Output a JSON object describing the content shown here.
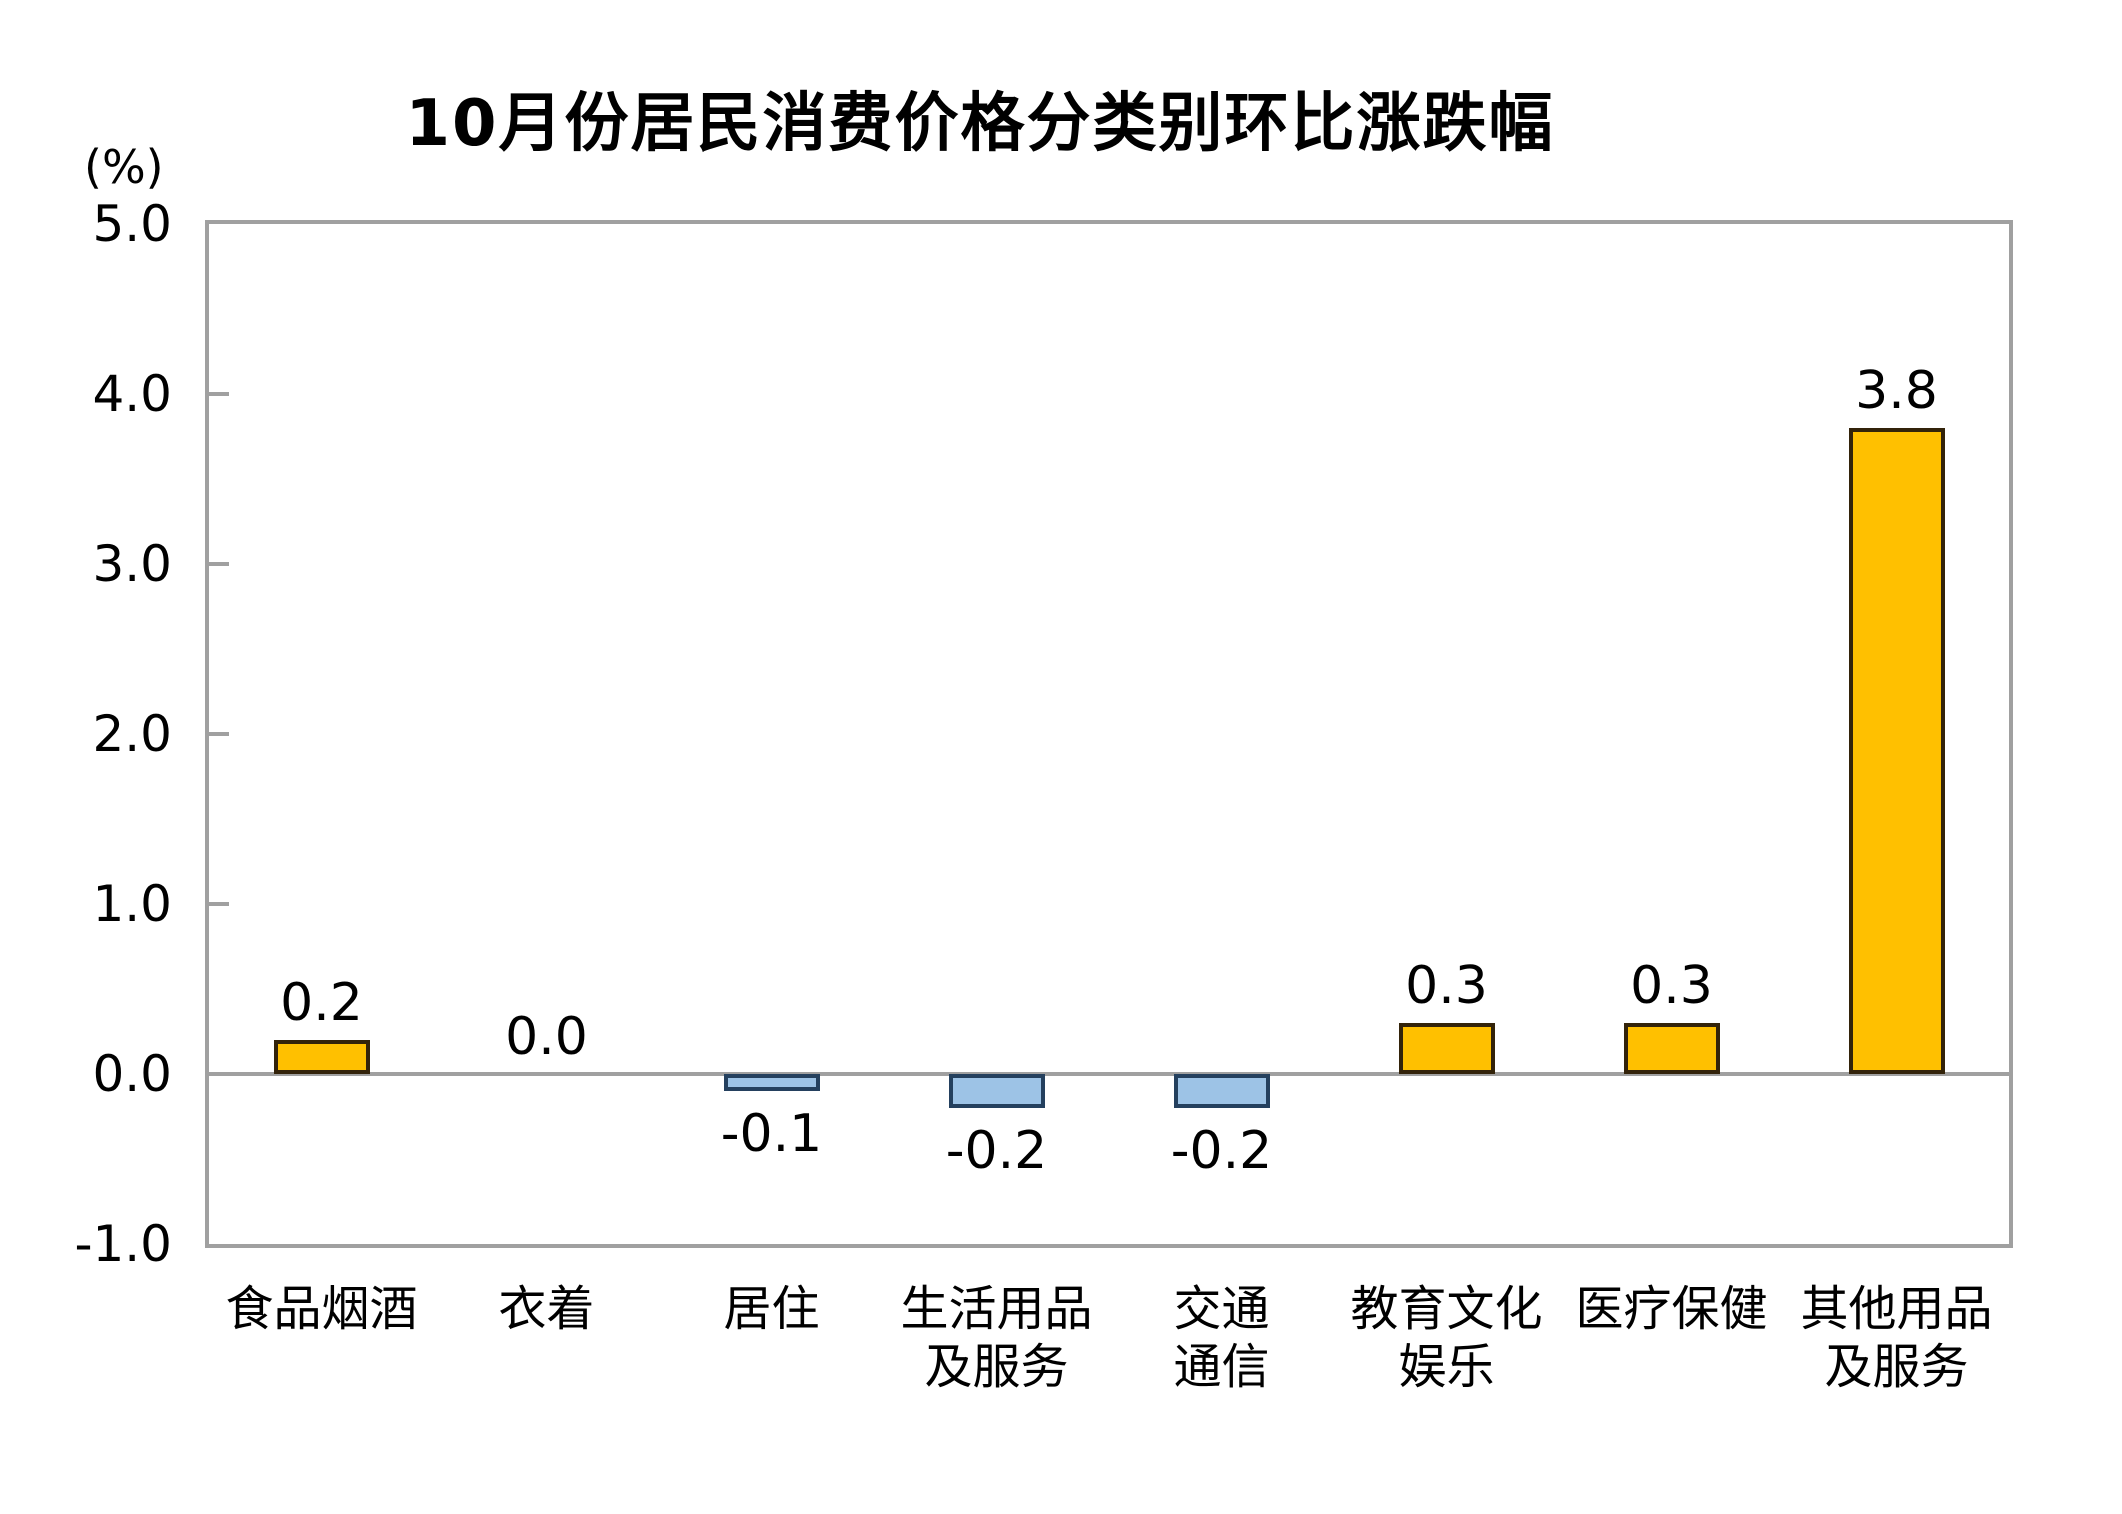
{
  "chart_data": {
    "type": "bar",
    "title": "10月份居民消费价格分类别环比涨跌幅",
    "unit_label": "(%)",
    "categories": [
      "食品烟酒",
      "衣着",
      "居住",
      "生活用品及服务",
      "交通通信",
      "教育文化娱乐",
      "医疗保健",
      "其他用品及服务"
    ],
    "category_lines": [
      [
        "食品烟酒"
      ],
      [
        "衣着"
      ],
      [
        "居住"
      ],
      [
        "生活用品",
        "及服务"
      ],
      [
        "交通",
        "通信"
      ],
      [
        "教育文化",
        "娱乐"
      ],
      [
        "医疗保健"
      ],
      [
        "其他用品",
        "及服务"
      ]
    ],
    "values": [
      0.2,
      0.0,
      -0.1,
      -0.2,
      -0.2,
      0.3,
      0.3,
      3.8
    ],
    "value_labels": [
      "0.2",
      "0.0",
      "-0.1",
      "-0.2",
      "-0.2",
      "0.3",
      "0.3",
      "3.8"
    ],
    "ylim": [
      -1.0,
      5.0
    ],
    "ytick_labels": [
      "5.0",
      "4.0",
      "3.0",
      "2.0",
      "1.0",
      "0.0",
      "-1.0"
    ],
    "ytick_values": [
      5,
      4,
      3,
      2,
      1,
      0,
      -1
    ],
    "inner_tick_values": [
      4,
      3,
      2,
      1
    ],
    "grid": false,
    "legend": null,
    "colors": {
      "bar_positive_fill": "#FFC000",
      "bar_positive_border": "#33230A",
      "bar_negative_fill": "#9DC3E6",
      "bar_negative_border": "#24405E",
      "axis": "#A0A0A0",
      "text": "#000000"
    }
  }
}
